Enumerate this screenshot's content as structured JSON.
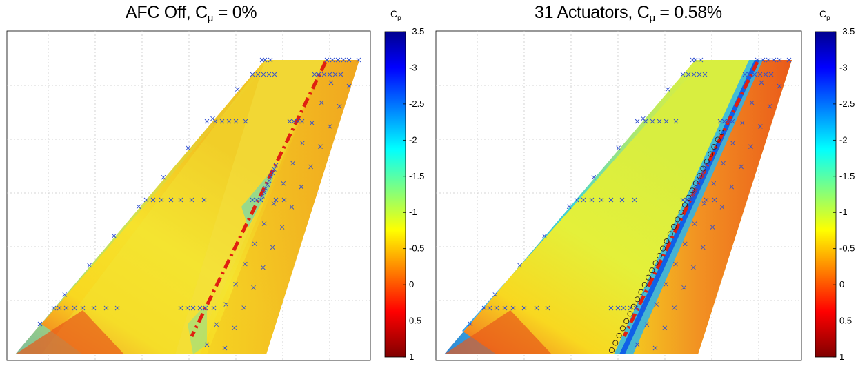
{
  "chart_data": [
    {
      "type": "heatmap",
      "title_main": "AFC Off, C",
      "title_sub": "μ",
      "title_tail": " = 0%",
      "colorbar": {
        "label": "C",
        "label_sub": "p",
        "ticks": [
          "-3.5",
          "-3",
          "-2.5",
          "-2",
          "-1.5",
          "-1",
          "-0.5",
          "0",
          "0.5",
          "1"
        ],
        "range": [
          -3.5,
          1
        ],
        "reversed": true,
        "colormap": "jet"
      },
      "grid": true,
      "surface": "tapered swept wing planform",
      "actuators": 0,
      "hinge_line": "red dash-dot"
    },
    {
      "type": "heatmap",
      "title_main": "31 Actuators, C",
      "title_sub": "μ",
      "title_tail": " = 0.58%",
      "colorbar": {
        "label": "C",
        "label_sub": "p",
        "ticks": [
          "-3.5",
          "-3",
          "-2.5",
          "-2",
          "-1.5",
          "-1",
          "-0.5",
          "0",
          "0.5",
          "1"
        ],
        "range": [
          -3.5,
          1
        ],
        "reversed": true,
        "colormap": "jet"
      },
      "grid": true,
      "surface": "tapered swept wing planform",
      "actuators": 31,
      "hinge_line": "red dash-dot"
    }
  ],
  "colors": {
    "jet": [
      "#00008f",
      "#0000ff",
      "#00ffff",
      "#ffff00",
      "#ff0000",
      "#800000"
    ],
    "hinge": "#e02010",
    "tap": "#3050d0",
    "actuator_ring": "#302018"
  }
}
